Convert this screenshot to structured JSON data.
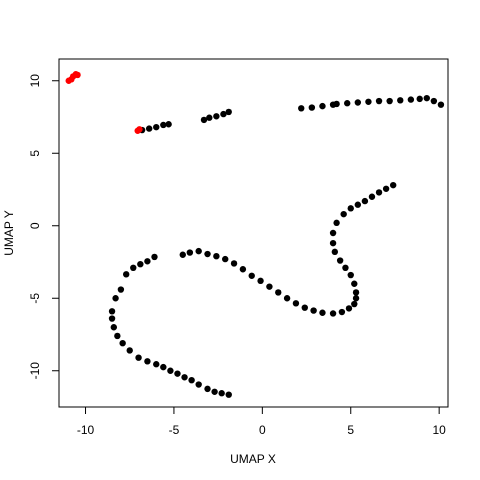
{
  "chart_data": {
    "type": "scatter",
    "title": "",
    "xlabel": "UMAP X",
    "ylabel": "UMAP Y",
    "xlim": [
      -11.5,
      10.5
    ],
    "ylim": [
      -12.5,
      11.5
    ],
    "x_ticks": [
      -10,
      -5,
      0,
      5,
      10
    ],
    "y_ticks": [
      -10,
      -5,
      0,
      5,
      10
    ],
    "x_tick_labels": [
      "-10",
      "-5",
      "0",
      "5",
      "10"
    ],
    "y_tick_labels": [
      "-10",
      "-5",
      "0",
      "5",
      "10"
    ],
    "grid": false,
    "legend": "none",
    "series": [
      {
        "color": "#000000",
        "points": [
          [
            -6.8,
            6.6
          ],
          [
            -6.4,
            6.7
          ],
          [
            -6.0,
            6.8
          ],
          [
            -5.6,
            6.95
          ],
          [
            -5.3,
            7.0
          ],
          [
            -3.3,
            7.3
          ],
          [
            -3.0,
            7.45
          ],
          [
            -2.6,
            7.55
          ],
          [
            -2.2,
            7.7
          ],
          [
            -1.9,
            7.85
          ],
          [
            2.2,
            8.1
          ],
          [
            2.8,
            8.15
          ],
          [
            3.4,
            8.25
          ],
          [
            4.0,
            8.35
          ],
          [
            4.2,
            8.4
          ],
          [
            4.8,
            8.45
          ],
          [
            5.4,
            8.5
          ],
          [
            6.0,
            8.55
          ],
          [
            6.6,
            8.6
          ],
          [
            7.2,
            8.6
          ],
          [
            7.8,
            8.65
          ],
          [
            8.4,
            8.7
          ],
          [
            8.9,
            8.75
          ],
          [
            9.3,
            8.8
          ],
          [
            9.7,
            8.6
          ],
          [
            10.1,
            8.35
          ],
          [
            7.4,
            2.8
          ],
          [
            7.0,
            2.55
          ],
          [
            6.6,
            2.3
          ],
          [
            6.2,
            2.0
          ],
          [
            5.8,
            1.7
          ],
          [
            5.4,
            1.45
          ],
          [
            5.0,
            1.2
          ],
          [
            4.6,
            0.8
          ],
          [
            4.2,
            0.2
          ],
          [
            4.0,
            -0.5
          ],
          [
            4.0,
            -1.2
          ],
          [
            4.1,
            -1.8
          ],
          [
            4.4,
            -2.4
          ],
          [
            4.7,
            -2.9
          ],
          [
            5.0,
            -3.4
          ],
          [
            5.2,
            -4.0
          ],
          [
            5.3,
            -4.6
          ],
          [
            5.3,
            -5.0
          ],
          [
            5.2,
            -5.4
          ],
          [
            4.9,
            -5.7
          ],
          [
            4.5,
            -5.95
          ],
          [
            4.0,
            -6.05
          ],
          [
            3.4,
            -6.0
          ],
          [
            2.9,
            -5.85
          ],
          [
            2.4,
            -5.65
          ],
          [
            1.9,
            -5.35
          ],
          [
            1.4,
            -5.0
          ],
          [
            0.9,
            -4.6
          ],
          [
            0.4,
            -4.2
          ],
          [
            -0.1,
            -3.8
          ],
          [
            -0.6,
            -3.45
          ],
          [
            -1.1,
            -3.0
          ],
          [
            -1.6,
            -2.6
          ],
          [
            -2.1,
            -2.3
          ],
          [
            -2.6,
            -2.1
          ],
          [
            -3.1,
            -1.95
          ],
          [
            -3.6,
            -1.75
          ],
          [
            -4.1,
            -1.85
          ],
          [
            -4.5,
            -2.0
          ],
          [
            -6.1,
            -2.15
          ],
          [
            -6.5,
            -2.45
          ],
          [
            -6.9,
            -2.65
          ],
          [
            -7.3,
            -2.9
          ],
          [
            -7.7,
            -3.35
          ],
          [
            -8.0,
            -4.4
          ],
          [
            -8.3,
            -5.0
          ],
          [
            -8.5,
            -5.9
          ],
          [
            -8.5,
            -6.4
          ],
          [
            -8.4,
            -7.0
          ],
          [
            -8.2,
            -7.6
          ],
          [
            -7.9,
            -8.1
          ],
          [
            -7.5,
            -8.6
          ],
          [
            -7.0,
            -9.1
          ],
          [
            -6.5,
            -9.35
          ],
          [
            -6.0,
            -9.55
          ],
          [
            -5.6,
            -9.75
          ],
          [
            -5.2,
            -10.0
          ],
          [
            -4.8,
            -10.2
          ],
          [
            -4.4,
            -10.45
          ],
          [
            -4.0,
            -10.65
          ],
          [
            -3.6,
            -10.95
          ],
          [
            -3.1,
            -11.25
          ],
          [
            -2.7,
            -11.45
          ],
          [
            -2.3,
            -11.55
          ],
          [
            -1.9,
            -11.65
          ]
        ]
      },
      {
        "color": "#ff0000",
        "points": [
          [
            -10.95,
            10.0
          ],
          [
            -10.8,
            10.1
          ],
          [
            -10.7,
            10.3
          ],
          [
            -10.55,
            10.45
          ],
          [
            -10.45,
            10.4
          ],
          [
            -7.05,
            6.55
          ],
          [
            -6.95,
            6.65
          ]
        ]
      }
    ]
  }
}
